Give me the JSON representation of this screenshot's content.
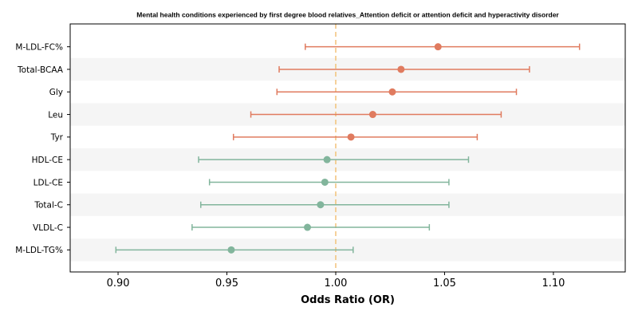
{
  "chart_data": {
    "type": "forest",
    "title": "Mental health conditions experienced by first degree blood relatives_Attention deficit or attention deficit and hyperactivity disorder",
    "xlabel": "Odds Ratio (OR)",
    "xlim": [
      0.878,
      1.133
    ],
    "xticks": [
      0.9,
      0.95,
      1.0,
      1.05,
      1.1
    ],
    "xtick_labels": [
      "0.90",
      "0.95",
      "1.00",
      "1.05",
      "1.10"
    ],
    "reference_line": 1.0,
    "reference_color": "#f2c27a",
    "colors": {
      "positive": "#e07b5f",
      "negative": "#82b59c",
      "stripe": "#f5f5f5"
    },
    "rows": [
      {
        "label": "M-LDL-FC%",
        "or": 1.047,
        "lo": 0.986,
        "hi": 1.112,
        "group": "positive"
      },
      {
        "label": "Total-BCAA",
        "or": 1.03,
        "lo": 0.974,
        "hi": 1.089,
        "group": "positive"
      },
      {
        "label": "Gly",
        "or": 1.026,
        "lo": 0.973,
        "hi": 1.083,
        "group": "positive"
      },
      {
        "label": "Leu",
        "or": 1.017,
        "lo": 0.961,
        "hi": 1.076,
        "group": "positive"
      },
      {
        "label": "Tyr",
        "or": 1.007,
        "lo": 0.953,
        "hi": 1.065,
        "group": "positive"
      },
      {
        "label": "HDL-CE",
        "or": 0.996,
        "lo": 0.937,
        "hi": 1.061,
        "group": "negative"
      },
      {
        "label": "LDL-CE",
        "or": 0.995,
        "lo": 0.942,
        "hi": 1.052,
        "group": "negative"
      },
      {
        "label": "Total-C",
        "or": 0.993,
        "lo": 0.938,
        "hi": 1.052,
        "group": "negative"
      },
      {
        "label": "VLDL-C",
        "or": 0.987,
        "lo": 0.934,
        "hi": 1.043,
        "group": "negative"
      },
      {
        "label": "M-LDL-TG%",
        "or": 0.952,
        "lo": 0.899,
        "hi": 1.008,
        "group": "negative"
      }
    ]
  }
}
